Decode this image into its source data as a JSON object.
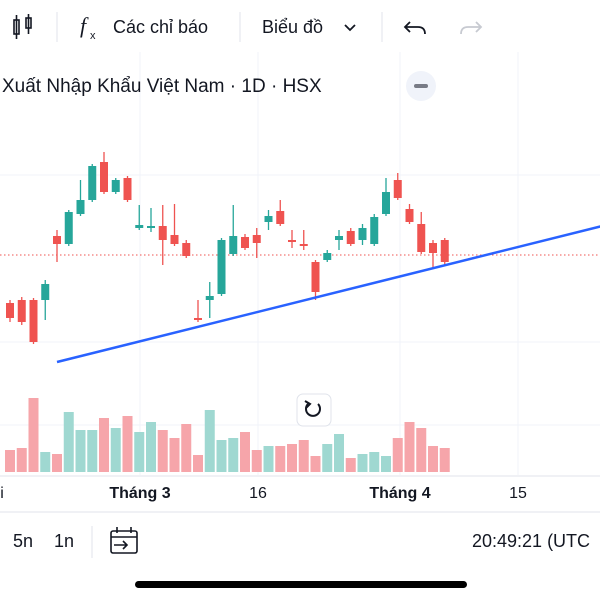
{
  "toolbar": {
    "indicators": "Các chỉ báo",
    "chart": "Biểu đồ"
  },
  "chart_data": {
    "type": "candlestick",
    "title": "Xuất Nhập Khẩu Việt Nam · 1D · HSX",
    "open": [
      97,
      100,
      100,
      100,
      164,
      156,
      186,
      200,
      238,
      208,
      222,
      172,
      172,
      174,
      165,
      157,
      82,
      100,
      106,
      146,
      163,
      165,
      178,
      189,
      160,
      156,
      138,
      140,
      160,
      169,
      160,
      156,
      186,
      220,
      191,
      176,
      157,
      160
    ],
    "high": [
      100,
      103,
      102,
      120,
      170,
      190,
      220,
      236,
      248,
      222,
      224,
      195,
      192,
      195,
      196,
      160,
      100,
      118,
      162,
      195,
      166,
      172,
      190,
      200,
      170,
      170,
      140,
      150,
      170,
      172,
      176,
      186,
      222,
      227,
      196,
      188,
      160,
      162
    ],
    "low": [
      78,
      75,
      56,
      80,
      138,
      154,
      184,
      198,
      206,
      206,
      198,
      170,
      168,
      135,
      154,
      142,
      78,
      82,
      104,
      144,
      150,
      142,
      170,
      174,
      152,
      150,
      100,
      138,
      150,
      154,
      155,
      154,
      184,
      200,
      176,
      146,
      132,
      134
    ],
    "close": [
      82,
      78,
      58,
      116,
      156,
      188,
      200,
      234,
      208,
      220,
      200,
      175,
      174,
      160,
      156,
      144,
      80,
      104,
      160,
      164,
      152,
      157,
      184,
      176,
      158,
      154,
      108,
      147,
      164,
      156,
      172,
      183,
      208,
      202,
      178,
      148,
      147,
      138
    ],
    "volume": [
      22,
      24,
      74,
      20,
      18,
      60,
      42,
      42,
      54,
      44,
      56,
      40,
      50,
      42,
      34,
      48,
      17,
      62,
      32,
      34,
      40,
      22,
      26,
      26,
      28,
      32,
      16,
      28,
      38,
      14,
      18,
      20,
      16,
      34,
      50,
      44,
      26,
      24
    ],
    "up_color": "#26a69a",
    "down_color": "#ef5350",
    "volume_up_color": "#9fd8d1",
    "volume_down_color": "#f6a5aa",
    "ylim": [
      40,
      340
    ],
    "volume_ylim": [
      0,
      120
    ],
    "trend_line": {
      "x": [
        4,
        50.4
      ],
      "values": [
        38,
        174
      ],
      "color": "#2962ff"
    },
    "price_line": {
      "value": 145,
      "color": "#ef5350"
    },
    "x_labels": [
      "i",
      "Tháng 3",
      "16",
      "Tháng 4",
      "15"
    ]
  },
  "bottom_bar": {
    "ranges": [
      "5n",
      "1n"
    ],
    "clock": "20:49:21 (UTC"
  }
}
